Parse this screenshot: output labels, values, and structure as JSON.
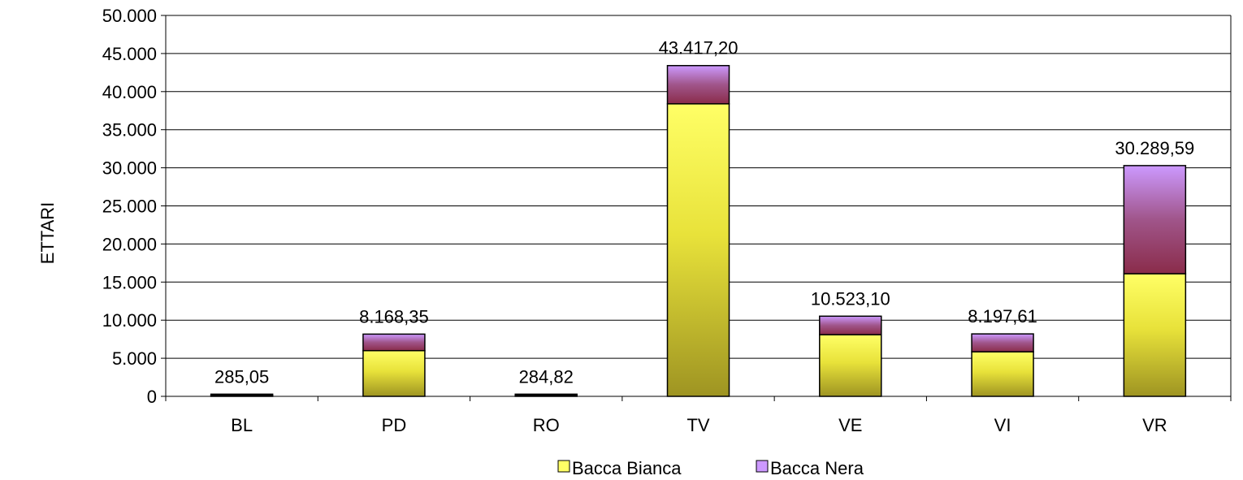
{
  "chart_data": {
    "type": "bar",
    "stacked": true,
    "title": "",
    "xlabel": "",
    "ylabel": "ETTARI",
    "ylim": [
      0,
      50000
    ],
    "yticks": [
      0,
      5000,
      10000,
      15000,
      20000,
      25000,
      30000,
      35000,
      40000,
      45000,
      50000
    ],
    "ytick_labels": [
      "0",
      "5.000",
      "10.000",
      "15.000",
      "20.000",
      "25.000",
      "30.000",
      "35.000",
      "40.000",
      "45.000",
      "50.000"
    ],
    "grid": true,
    "legend_position": "bottom",
    "categories": [
      "BL",
      "PD",
      "RO",
      "TV",
      "VE",
      "VI",
      "VR"
    ],
    "series": [
      {
        "name": "Bacca Bianca",
        "values": [
          150,
          6000,
          150,
          38400,
          8100,
          5850,
          16100
        ],
        "color": "#ffff66"
      },
      {
        "name": "Bacca Nera",
        "values": [
          135.05,
          2168.35,
          134.82,
          5017.2,
          2423.1,
          2347.61,
          14189.59
        ],
        "color": "#cc99ff"
      }
    ],
    "total_labels": [
      "285,05",
      "8.168,35",
      "284,82",
      "43.417,20",
      "10.523,10",
      "8.197,61",
      "30.289,59"
    ],
    "totals": [
      285.05,
      8168.35,
      284.82,
      43417.2,
      10523.1,
      8197.61,
      30289.59
    ]
  }
}
